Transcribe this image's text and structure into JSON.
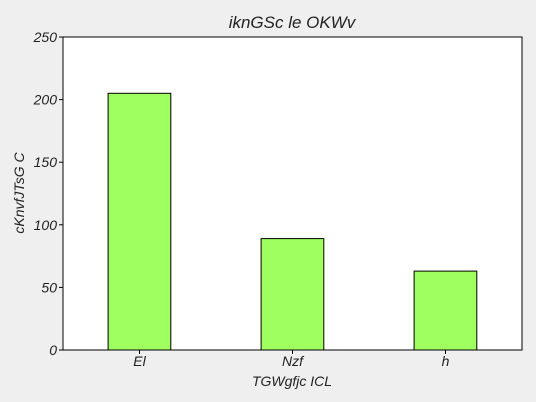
{
  "chart_data": {
    "type": "bar",
    "title": "iknGSc le OKWv",
    "xlabel": "TGWgfjc ICL",
    "ylabel": "cKnvfJTsG C",
    "categories": [
      "El",
      "Nzf",
      "h"
    ],
    "values": [
      205,
      89,
      63
    ],
    "ylim": [
      0,
      250
    ],
    "yticks": [
      0,
      50,
      100,
      150,
      200,
      250
    ],
    "grid": false,
    "legend": "none",
    "bar_color": "#a0ff60",
    "bar_edge_color": "#000000",
    "plot_background": "#ffffff",
    "page_background": "#efefef"
  }
}
